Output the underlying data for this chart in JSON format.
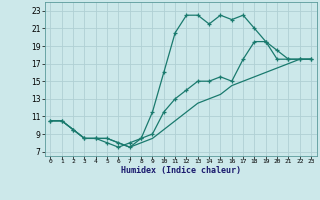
{
  "xlabel": "Humidex (Indice chaleur)",
  "background_color": "#cce8ea",
  "grid_color": "#b0d0d4",
  "line_color": "#1a7a6e",
  "xlim": [
    -0.5,
    23.5
  ],
  "ylim": [
    6.5,
    24.0
  ],
  "xticks": [
    0,
    1,
    2,
    3,
    4,
    5,
    6,
    7,
    8,
    9,
    10,
    11,
    12,
    13,
    14,
    15,
    16,
    17,
    18,
    19,
    20,
    21,
    22,
    23
  ],
  "yticks": [
    7,
    9,
    11,
    13,
    15,
    17,
    19,
    21,
    23
  ],
  "line1_y": [
    10.5,
    10.5,
    9.5,
    8.5,
    8.5,
    8.0,
    7.5,
    8.0,
    8.5,
    11.5,
    16.0,
    20.5,
    22.5,
    22.5,
    21.5,
    22.5,
    22.0,
    22.5,
    21.0,
    19.5,
    18.5,
    17.5,
    17.5,
    17.5
  ],
  "line2_y": [
    10.5,
    10.5,
    9.5,
    8.5,
    8.5,
    8.5,
    8.0,
    7.5,
    8.5,
    9.0,
    11.5,
    13.0,
    14.0,
    15.0,
    15.0,
    15.5,
    15.0,
    17.5,
    19.5,
    19.5,
    17.5,
    17.5,
    17.5,
    17.5
  ],
  "line3_y": [
    10.5,
    10.5,
    9.5,
    8.5,
    8.5,
    8.5,
    8.0,
    7.5,
    8.0,
    8.5,
    9.5,
    10.5,
    11.5,
    12.5,
    13.0,
    13.5,
    14.5,
    15.0,
    15.5,
    16.0,
    16.5,
    17.0,
    17.5,
    17.5
  ]
}
